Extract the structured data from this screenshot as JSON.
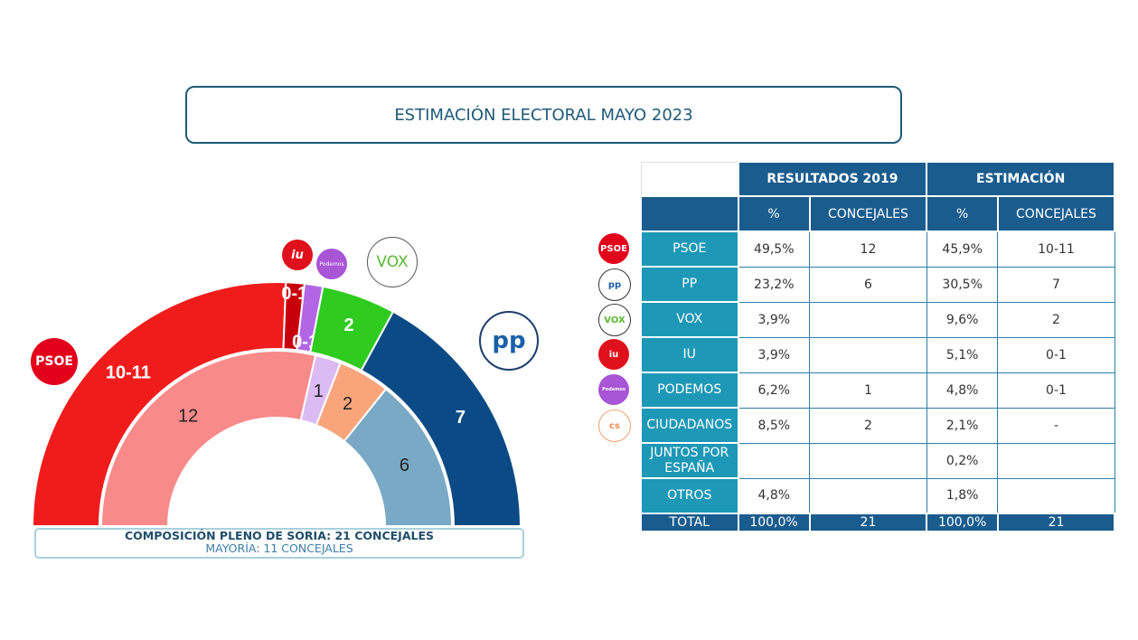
{
  "title": "ESTIMACIÓN ELECTORAL MAYO 2023",
  "composition": {
    "line1": "COMPOSICIÓN PLENO DE SORIA: 21 CONCEJALES",
    "line2": "MAYORÍA: 11 CONCEJALES"
  },
  "logos": {
    "psoe": "PSOE",
    "pp": "pp",
    "vox": "VOX",
    "iu": "iu",
    "podemos": "Podemos",
    "cs": "cs"
  },
  "chart_data": {
    "type": "pie",
    "subtype": "hemicycle",
    "total_seats": 21,
    "rings": [
      {
        "ring": "outer",
        "label": "ESTIMACIÓN",
        "segments": [
          {
            "party": "PSOE",
            "label": "10-11",
            "seats": 10.5,
            "color": "#f01c1c"
          },
          {
            "party": "IU",
            "label": "0-1",
            "seats": 0.5,
            "color": "#c8000c"
          },
          {
            "party": "PODEMOS",
            "label": "0-1",
            "seats": 0.5,
            "color": "#b266e6"
          },
          {
            "party": "VOX",
            "label": "2",
            "seats": 2,
            "color": "#2fcb1f"
          },
          {
            "party": "PP",
            "label": "7",
            "seats": 7,
            "color": "#0b4a85"
          }
        ]
      },
      {
        "ring": "inner",
        "label": "RESULTADOS 2019",
        "segments": [
          {
            "party": "PSOE",
            "label": "12",
            "seats": 12,
            "color": "#f98a8a"
          },
          {
            "party": "PODEMOS",
            "label": "1",
            "seats": 1,
            "color": "#dcbaf2"
          },
          {
            "party": "CIUDADANOS",
            "label": "2",
            "seats": 2,
            "color": "#f8a57c"
          },
          {
            "party": "PP",
            "label": "6",
            "seats": 6,
            "color": "#79a9c4"
          }
        ]
      }
    ]
  },
  "table": {
    "group_headers": [
      "RESULTADOS 2019",
      "ESTIMACIÓN"
    ],
    "sub_headers": [
      "%",
      "CONCEJALES",
      "%",
      "CONCEJALES"
    ],
    "rows": [
      {
        "party": "PSOE",
        "logo": "psoe",
        "cells": [
          "49,5%",
          "12",
          "45,9%",
          "10-11"
        ]
      },
      {
        "party": "PP",
        "logo": "pp",
        "cells": [
          "23,2%",
          "6",
          "30,5%",
          "7"
        ]
      },
      {
        "party": "VOX",
        "logo": "vox",
        "cells": [
          "3,9%",
          "",
          "9,6%",
          "2"
        ]
      },
      {
        "party": "IU",
        "logo": "iu",
        "cells": [
          "3,9%",
          "",
          "5,1%",
          "0-1"
        ]
      },
      {
        "party": "PODEMOS",
        "logo": "podemos",
        "cells": [
          "6,2%",
          "1",
          "4,8%",
          "0-1"
        ]
      },
      {
        "party": "CIUDADANOS",
        "logo": "cs",
        "cells": [
          "8,5%",
          "2",
          "2,1%",
          "-"
        ]
      },
      {
        "party": "JUNTOS POR ESPAÑA",
        "cells": [
          "",
          "",
          "0,2%",
          ""
        ]
      },
      {
        "party": "OTROS",
        "cells": [
          "4,8%",
          "",
          "1,8%",
          ""
        ]
      }
    ],
    "total": {
      "label": "TOTAL",
      "cells": [
        "100,0%",
        "21",
        "100,0%",
        "21"
      ]
    }
  }
}
